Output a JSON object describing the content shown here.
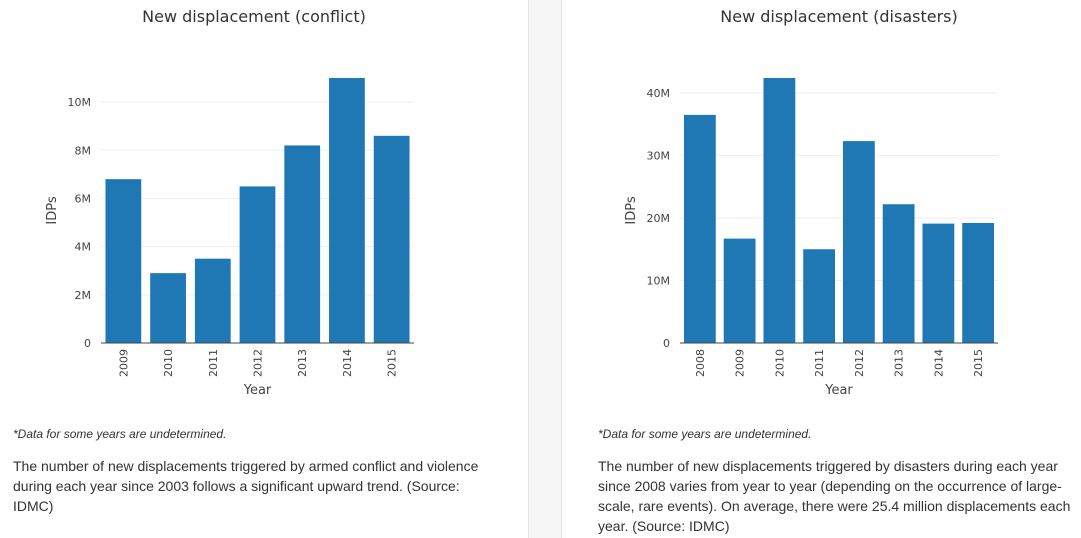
{
  "chart_data": [
    {
      "type": "bar",
      "title": "New displacement (conflict)",
      "xlabel": "Year",
      "ylabel": "IDPs",
      "categories": [
        "2009",
        "2010",
        "2011",
        "2012",
        "2013",
        "2014",
        "2015"
      ],
      "values": [
        6800000,
        2900000,
        3500000,
        6500000,
        8200000,
        11000000,
        8600000
      ],
      "ylim": [
        0,
        11000000
      ],
      "yticks": [
        0,
        2000000,
        4000000,
        6000000,
        8000000,
        10000000
      ],
      "ytick_labels": [
        "0",
        "2M",
        "4M",
        "6M",
        "8M",
        "10M"
      ],
      "grid": true,
      "bar_color": "#1f77b4"
    },
    {
      "type": "bar",
      "title": "New displacement (disasters)",
      "xlabel": "Year",
      "ylabel": "IDPs",
      "categories": [
        "2008",
        "2009",
        "2010",
        "2011",
        "2012",
        "2013",
        "2014",
        "2015"
      ],
      "values": [
        36500000,
        16700000,
        42400000,
        15000000,
        32300000,
        22200000,
        19100000,
        19200000
      ],
      "ylim": [
        0,
        42400000
      ],
      "yticks": [
        0,
        10000000,
        20000000,
        30000000,
        40000000
      ],
      "ytick_labels": [
        "0",
        "10M",
        "20M",
        "30M",
        "40M"
      ],
      "grid": true,
      "bar_color": "#1f77b4"
    }
  ],
  "left": {
    "footnote": "*Data for some years are undetermined.",
    "description": "The number of new displacements triggered by armed conflict and violence during each year since 2003 follows a significant upward trend. (Source: IDMC)"
  },
  "right": {
    "footnote": "*Data for some years are undetermined.",
    "description": "The number of new displacements triggered by disasters during each year since 2008 varies from year to year (depending on the occurrence of large-scale, rare events). On average, there were 25.4 million displacements each year. (Source: IDMC)"
  }
}
